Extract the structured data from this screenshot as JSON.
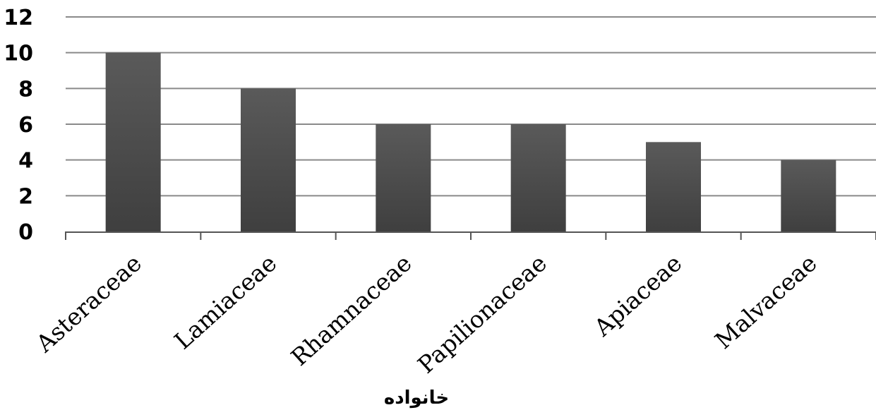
{
  "chart_data": {
    "type": "bar",
    "categories": [
      "Asteraceae",
      "Lamiaceae",
      "Rhamnaceae",
      "Papilionaceae",
      "Apiaceae",
      "Malvaceae"
    ],
    "values": [
      10,
      8,
      6,
      6,
      5,
      4
    ],
    "title": "",
    "xlabel": "خانواده",
    "ylabel": "",
    "ylim": [
      0,
      12
    ],
    "yticks": [
      "0",
      "2",
      "4",
      "6",
      "8",
      "10",
      "12"
    ],
    "grid": true,
    "legend": "none",
    "colors": {
      "bar": "#4b4b4b",
      "bar_highlight": "#5e5e5e",
      "grid": "#8a8a8a",
      "axis": "#555555"
    }
  }
}
